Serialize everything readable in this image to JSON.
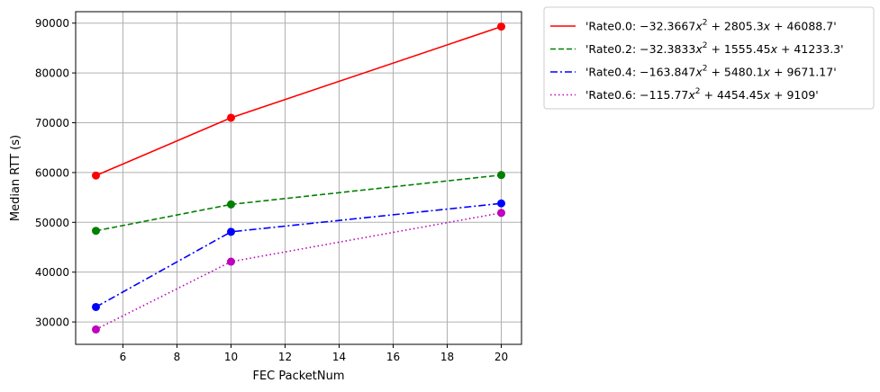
{
  "chart_data": {
    "type": "line",
    "xlabel": "FEC PacketNum",
    "ylabel": "Median RTT (s)",
    "xlim": [
      4.25,
      20.75
    ],
    "ylim": [
      25500,
      92300
    ],
    "x_ticks": [
      6,
      8,
      10,
      12,
      14,
      16,
      18,
      20
    ],
    "y_ticks": [
      30000,
      40000,
      50000,
      60000,
      70000,
      80000,
      90000
    ],
    "grid": true,
    "legend_placement": "outside-top-right",
    "x": [
      5,
      10,
      20
    ],
    "series": [
      {
        "name": "'Rate0.0: $-32.3667x^2+2805.3x+46088.7$'",
        "legend_parts": [
          "'Rate0.0: ",
          "−32.3667",
          "x",
          "2",
          " + 2805.3",
          "x",
          " + 46088.7",
          "'"
        ],
        "values": [
          59400,
          71000,
          89300
        ],
        "color": "#ff0000",
        "linestyle": "solid"
      },
      {
        "name": "'Rate0.2: $-32.3833x^2+1555.45x+41233.3$'",
        "legend_parts": [
          "'Rate0.2: ",
          "−32.3833",
          "x",
          "2",
          " + 1555.45",
          "x",
          " + 41233.3",
          "'"
        ],
        "values": [
          48300,
          53600,
          59500
        ],
        "color": "#008000",
        "linestyle": "dashed"
      },
      {
        "name": "'Rate0.4: $-163.847x^2+5480.1x+9671.17$'",
        "legend_parts": [
          "'Rate0.4: ",
          "−163.847",
          "x",
          "2",
          " + 5480.1",
          "x",
          " + 9671.17",
          "'"
        ],
        "values": [
          33000,
          48100,
          53800
        ],
        "color": "#0000ff",
        "linestyle": "dashdot"
      },
      {
        "name": "'Rate0.6: $-115.77x^2+4454.45x+9109$'",
        "legend_parts": [
          "'Rate0.6: ",
          "−115.77",
          "x",
          "2",
          " + 4454.45",
          "x",
          " + 9109",
          "'"
        ],
        "values": [
          28500,
          42100,
          51900
        ],
        "color": "#bf00bf",
        "linestyle": "dotted"
      }
    ]
  }
}
